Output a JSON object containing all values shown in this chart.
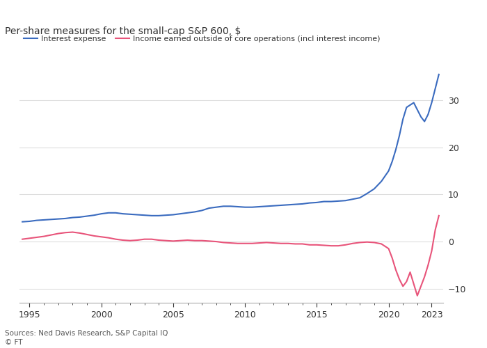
{
  "title": "Per-share measures for the small-cap S&P 600, $",
  "source": "Sources: Ned Davis Research, S&P Capital IQ",
  "footer": "© FT",
  "legend_1": "Interest expense",
  "legend_2": "Income earned outside of core operations (incl interest income)",
  "color_1": "#3a6bbf",
  "color_2": "#e8547a",
  "bg_color": "#ffffff",
  "text_color": "#333333",
  "grid_color": "#dddddd",
  "ylim": [
    -13,
    38
  ],
  "yticks": [
    -10,
    0,
    10,
    20,
    30
  ],
  "xlim": [
    1994.3,
    2023.8
  ],
  "xticks": [
    1995,
    2000,
    2005,
    2010,
    2015,
    2020,
    2023
  ],
  "interest_expense": {
    "years": [
      1994.5,
      1995.0,
      1995.5,
      1996.0,
      1996.5,
      1997.0,
      1997.5,
      1998.0,
      1998.5,
      1999.0,
      1999.5,
      2000.0,
      2000.5,
      2001.0,
      2001.5,
      2002.0,
      2002.5,
      2003.0,
      2003.5,
      2004.0,
      2004.5,
      2005.0,
      2005.5,
      2006.0,
      2006.5,
      2007.0,
      2007.5,
      2008.0,
      2008.5,
      2009.0,
      2009.5,
      2010.0,
      2010.5,
      2011.0,
      2011.5,
      2012.0,
      2012.5,
      2013.0,
      2013.5,
      2014.0,
      2014.5,
      2015.0,
      2015.5,
      2016.0,
      2016.5,
      2017.0,
      2017.5,
      2018.0,
      2018.5,
      2019.0,
      2019.5,
      2020.0,
      2020.25,
      2020.5,
      2020.75,
      2021.0,
      2021.25,
      2021.5,
      2021.75,
      2022.0,
      2022.25,
      2022.5,
      2022.75,
      2023.0,
      2023.25,
      2023.5
    ],
    "values": [
      4.2,
      4.3,
      4.5,
      4.6,
      4.7,
      4.8,
      4.9,
      5.1,
      5.2,
      5.4,
      5.6,
      5.9,
      6.1,
      6.1,
      5.9,
      5.8,
      5.7,
      5.6,
      5.5,
      5.5,
      5.6,
      5.7,
      5.9,
      6.1,
      6.3,
      6.6,
      7.1,
      7.3,
      7.5,
      7.5,
      7.4,
      7.3,
      7.3,
      7.4,
      7.5,
      7.6,
      7.7,
      7.8,
      7.9,
      8.0,
      8.2,
      8.3,
      8.5,
      8.5,
      8.6,
      8.7,
      9.0,
      9.3,
      10.2,
      11.2,
      12.8,
      15.0,
      17.0,
      19.5,
      22.5,
      26.0,
      28.5,
      29.0,
      29.5,
      28.0,
      26.5,
      25.5,
      27.0,
      29.5,
      32.5,
      35.5
    ]
  },
  "interest_income": {
    "years": [
      1994.5,
      1995.0,
      1995.5,
      1996.0,
      1996.5,
      1997.0,
      1997.5,
      1998.0,
      1998.5,
      1999.0,
      1999.5,
      2000.0,
      2000.5,
      2001.0,
      2001.5,
      2002.0,
      2002.5,
      2003.0,
      2003.5,
      2004.0,
      2004.5,
      2005.0,
      2005.5,
      2006.0,
      2006.5,
      2007.0,
      2007.5,
      2008.0,
      2008.5,
      2009.0,
      2009.5,
      2010.0,
      2010.5,
      2011.0,
      2011.5,
      2012.0,
      2012.5,
      2013.0,
      2013.5,
      2014.0,
      2014.5,
      2015.0,
      2015.5,
      2016.0,
      2016.5,
      2017.0,
      2017.5,
      2018.0,
      2018.5,
      2019.0,
      2019.5,
      2020.0,
      2020.25,
      2020.5,
      2020.75,
      2021.0,
      2021.25,
      2021.5,
      2021.75,
      2022.0,
      2022.25,
      2022.5,
      2022.75,
      2023.0,
      2023.25,
      2023.5
    ],
    "values": [
      0.5,
      0.7,
      0.9,
      1.1,
      1.4,
      1.7,
      1.9,
      2.0,
      1.8,
      1.5,
      1.2,
      1.0,
      0.8,
      0.5,
      0.3,
      0.2,
      0.3,
      0.5,
      0.5,
      0.3,
      0.2,
      0.1,
      0.2,
      0.3,
      0.2,
      0.2,
      0.1,
      0.0,
      -0.2,
      -0.3,
      -0.4,
      -0.4,
      -0.4,
      -0.3,
      -0.2,
      -0.3,
      -0.4,
      -0.4,
      -0.5,
      -0.5,
      -0.7,
      -0.7,
      -0.8,
      -0.9,
      -0.9,
      -0.7,
      -0.4,
      -0.2,
      -0.1,
      -0.2,
      -0.5,
      -1.5,
      -3.5,
      -6.0,
      -8.0,
      -9.5,
      -8.5,
      -6.5,
      -9.0,
      -11.5,
      -9.5,
      -7.5,
      -5.0,
      -2.0,
      2.5,
      5.5
    ]
  }
}
